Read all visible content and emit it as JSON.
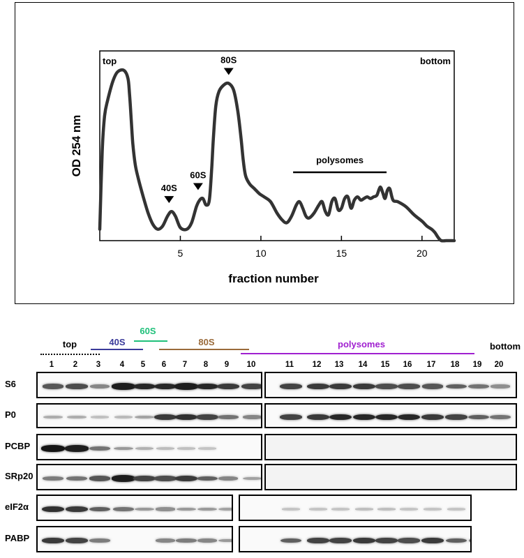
{
  "profile": {
    "chart_data": {
      "type": "line",
      "xlabel": "fraction number",
      "ylabel": "OD 254 nm",
      "xlim": [
        0,
        22
      ],
      "xticks": [
        5,
        10,
        15,
        20
      ],
      "x": [
        0.0,
        0.15,
        0.3,
        0.5,
        0.8,
        1.1,
        1.5,
        1.75,
        1.85,
        1.95,
        2.05,
        2.2,
        2.4,
        2.7,
        3.0,
        3.3,
        3.6,
        3.9,
        4.2,
        4.45,
        4.7,
        5.0,
        5.4,
        5.7,
        6.0,
        6.2,
        6.4,
        6.6,
        6.8,
        6.95,
        7.05,
        7.2,
        7.4,
        7.7,
        8.0,
        8.3,
        8.55,
        8.75,
        8.9,
        9.05,
        9.3,
        9.6,
        9.9,
        10.2,
        10.6,
        11.0,
        11.3,
        11.6,
        11.9,
        12.2,
        12.4,
        12.6,
        12.8,
        13.0,
        13.3,
        13.6,
        13.8,
        14.0,
        14.2,
        14.4,
        14.6,
        14.8,
        15.0,
        15.2,
        15.4,
        15.6,
        15.8,
        16.0,
        16.2,
        16.4,
        16.6,
        16.8,
        17.0,
        17.2,
        17.4,
        17.55,
        17.7,
        17.85,
        18.0,
        18.2,
        18.5,
        19.0,
        19.5,
        20.0,
        20.3,
        20.6,
        20.8,
        21.0,
        21.2,
        21.5,
        22.0
      ],
      "y": [
        0.02,
        0.5,
        0.72,
        0.82,
        0.93,
        0.99,
        1.0,
        0.95,
        0.85,
        0.7,
        0.55,
        0.42,
        0.33,
        0.22,
        0.12,
        0.05,
        0.02,
        0.04,
        0.1,
        0.13,
        0.1,
        0.03,
        0.02,
        0.06,
        0.16,
        0.2,
        0.21,
        0.17,
        0.2,
        0.4,
        0.58,
        0.78,
        0.87,
        0.91,
        0.92,
        0.88,
        0.76,
        0.6,
        0.45,
        0.35,
        0.3,
        0.27,
        0.24,
        0.22,
        0.19,
        0.12,
        0.08,
        0.06,
        0.1,
        0.17,
        0.19,
        0.15,
        0.1,
        0.09,
        0.12,
        0.17,
        0.19,
        0.13,
        0.11,
        0.19,
        0.21,
        0.14,
        0.15,
        0.21,
        0.22,
        0.15,
        0.2,
        0.22,
        0.2,
        0.21,
        0.22,
        0.21,
        0.22,
        0.23,
        0.28,
        0.25,
        0.21,
        0.26,
        0.27,
        0.2,
        0.19,
        0.16,
        0.11,
        0.07,
        0.04,
        0.02,
        0.0,
        -0.03,
        -0.05,
        -0.05,
        -0.05
      ],
      "ylim": [
        -0.05,
        1.12
      ],
      "annotations": [
        {
          "text": "40S",
          "x": 4.3,
          "y": 0.13
        },
        {
          "text": "60S",
          "x": 6.1,
          "y": 0.21
        },
        {
          "text": "80S",
          "x": 8.0,
          "y": 0.92
        }
      ],
      "corner_labels": {
        "left": "top",
        "right": "bottom"
      },
      "range_label": {
        "text": "polysomes",
        "x_start": 12.0,
        "x_end": 17.8
      }
    }
  },
  "blot": {
    "ranges": [
      {
        "label": "top",
        "color": "#000000",
        "dotted": true
      },
      {
        "label": "40S",
        "color": "#3a3a9a"
      },
      {
        "label": "60S",
        "color": "#1fc07a"
      },
      {
        "label": "80S",
        "color": "#9a6a3a"
      },
      {
        "label": "polysomes",
        "color": "#a020d0"
      },
      {
        "label": "bottom",
        "color": "#000000"
      }
    ],
    "fractions": [
      "1",
      "2",
      "3",
      "4",
      "5",
      "6",
      "7",
      "8",
      "9",
      "10",
      "11",
      "12",
      "13",
      "14",
      "15",
      "16",
      "17",
      "18",
      "19",
      "20"
    ],
    "rows": [
      {
        "label": "S6",
        "intensity": [
          0.6,
          0.65,
          0.35,
          0.9,
          0.85,
          0.85,
          0.9,
          0.85,
          0.75,
          0.7,
          0.7,
          0.75,
          0.75,
          0.75,
          0.65,
          0.65,
          0.6,
          0.55,
          0.45,
          0.3
        ]
      },
      {
        "label": "P0",
        "intensity": [
          0.15,
          0.15,
          0.05,
          0.08,
          0.2,
          0.75,
          0.8,
          0.7,
          0.45,
          0.35,
          0.7,
          0.75,
          0.85,
          0.85,
          0.85,
          0.85,
          0.75,
          0.7,
          0.55,
          0.45
        ]
      },
      {
        "label": "PCBP",
        "intensity": [
          0.95,
          0.9,
          0.45,
          0.25,
          0.12,
          0.06,
          0.04,
          0.02,
          0,
          0,
          0,
          0,
          0,
          0,
          0,
          0,
          0,
          0,
          0,
          0
        ]
      },
      {
        "label": "SRp20",
        "intensity": [
          0.4,
          0.45,
          0.6,
          0.9,
          0.7,
          0.65,
          0.75,
          0.55,
          0.35,
          0.2,
          0,
          0,
          0,
          0,
          0,
          0,
          0,
          0,
          0,
          0
        ]
      },
      {
        "label": "eIF2α",
        "intensity": [
          0.8,
          0.75,
          0.55,
          0.45,
          0.25,
          0.3,
          0.25,
          0.25,
          0.2,
          0,
          0.02,
          0.02,
          0.02,
          0.05,
          0.05,
          0.02,
          0.02,
          0.02,
          0,
          0
        ]
      },
      {
        "label": "PABP",
        "intensity": [
          0.75,
          0.7,
          0.4,
          0,
          0,
          0.35,
          0.4,
          0.35,
          0.25,
          0,
          0.55,
          0.7,
          0.7,
          0.75,
          0.7,
          0.65,
          0.75,
          0.55,
          0.35,
          0
        ]
      }
    ]
  }
}
